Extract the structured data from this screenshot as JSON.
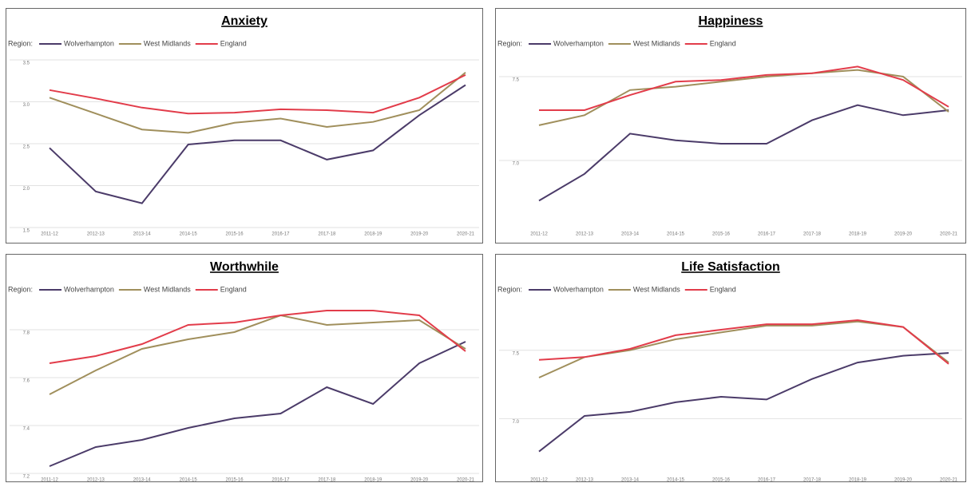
{
  "chart_data": [
    {
      "type": "line",
      "title": "Anxiety",
      "legend_title": "Region:",
      "categories": [
        "2011-12",
        "2012-13",
        "2013-14",
        "2014-15",
        "2015-16",
        "2016-17",
        "2017-18",
        "2018-19",
        "2019-20",
        "2020-21"
      ],
      "series": [
        {
          "name": "Wolverhampton",
          "color": "#4b3b69",
          "values": [
            2.45,
            1.93,
            1.79,
            2.49,
            2.54,
            2.54,
            2.31,
            2.42,
            2.84,
            3.2
          ]
        },
        {
          "name": "West Midlands",
          "color": "#a08f5c",
          "values": [
            3.05,
            2.86,
            2.67,
            2.63,
            2.75,
            2.8,
            2.7,
            2.76,
            2.9,
            3.35
          ]
        },
        {
          "name": "England",
          "color": "#e23c4a",
          "values": [
            3.14,
            3.04,
            2.93,
            2.86,
            2.87,
            2.91,
            2.9,
            2.87,
            3.05,
            3.32
          ]
        }
      ],
      "ylim": [
        1.5,
        3.5
      ],
      "yticks": [
        1.5,
        {
          "value": 2,
          "label": "2.0"
        },
        2.5,
        {
          "value": 3,
          "label": "3.0"
        },
        3.5
      ],
      "grid": true
    },
    {
      "type": "line",
      "title": "Happiness",
      "legend_title": "Region:",
      "categories": [
        "2011-12",
        "2012-13",
        "2013-14",
        "2014-15",
        "2015-16",
        "2016-17",
        "2017-18",
        "2018-19",
        "2019-20",
        "2020-21"
      ],
      "series": [
        {
          "name": "Wolverhampton",
          "color": "#4b3b69",
          "values": [
            6.76,
            6.92,
            7.16,
            7.12,
            7.1,
            7.1,
            7.24,
            7.33,
            7.27,
            7.3
          ]
        },
        {
          "name": "West Midlands",
          "color": "#a08f5c",
          "values": [
            7.21,
            7.27,
            7.42,
            7.44,
            7.47,
            7.5,
            7.52,
            7.54,
            7.5,
            7.29
          ]
        },
        {
          "name": "England",
          "color": "#e23c4a",
          "values": [
            7.3,
            7.3,
            7.39,
            7.47,
            7.48,
            7.51,
            7.52,
            7.56,
            7.48,
            7.32
          ]
        }
      ],
      "ylim": [
        6.6,
        7.6
      ],
      "yticks": [
        {
          "value": 7,
          "label": "7.0"
        },
        7.5
      ],
      "grid": true
    },
    {
      "type": "line",
      "title": "Worthwhile",
      "legend_title": "Region:",
      "categories": [
        "2011-12",
        "2012-13",
        "2013-14",
        "2014-15",
        "2015-16",
        "2016-17",
        "2017-18",
        "2018-19",
        "2019-20",
        "2020-21"
      ],
      "series": [
        {
          "name": "Wolverhampton",
          "color": "#4b3b69",
          "values": [
            7.23,
            7.31,
            7.34,
            7.39,
            7.43,
            7.45,
            7.56,
            7.49,
            7.66,
            7.75
          ]
        },
        {
          "name": "West Midlands",
          "color": "#a08f5c",
          "values": [
            7.53,
            7.63,
            7.72,
            7.76,
            7.79,
            7.86,
            7.82,
            7.83,
            7.84,
            7.72
          ]
        },
        {
          "name": "England",
          "color": "#e23c4a",
          "values": [
            7.66,
            7.69,
            7.74,
            7.82,
            7.83,
            7.86,
            7.88,
            7.88,
            7.86,
            7.71
          ]
        }
      ],
      "ylim": [
        7.2,
        8.0
      ],
      "yticks": [
        7.2,
        7.4,
        7.6,
        7.8
      ],
      "grid": true
    },
    {
      "type": "line",
      "title": "Life Satisfaction",
      "legend_title": "Region:",
      "categories": [
        "2011-12",
        "2012-13",
        "2013-14",
        "2014-15",
        "2015-16",
        "2016-17",
        "2017-18",
        "2018-19",
        "2019-20",
        "2020-21"
      ],
      "series": [
        {
          "name": "Wolverhampton",
          "color": "#4b3b69",
          "values": [
            6.76,
            7.02,
            7.05,
            7.12,
            7.16,
            7.14,
            7.29,
            7.41,
            7.46,
            7.48
          ]
        },
        {
          "name": "West Midlands",
          "color": "#a08f5c",
          "values": [
            7.3,
            7.45,
            7.5,
            7.58,
            7.63,
            7.68,
            7.68,
            7.71,
            7.67,
            7.41
          ]
        },
        {
          "name": "England",
          "color": "#e23c4a",
          "values": [
            7.43,
            7.45,
            7.51,
            7.61,
            7.65,
            7.69,
            7.69,
            7.72,
            7.67,
            7.4
          ]
        }
      ],
      "ylim": [
        6.6,
        8.0
      ],
      "yticks": [
        {
          "value": 7,
          "label": "7.0"
        },
        7.5
      ],
      "grid": true
    }
  ]
}
